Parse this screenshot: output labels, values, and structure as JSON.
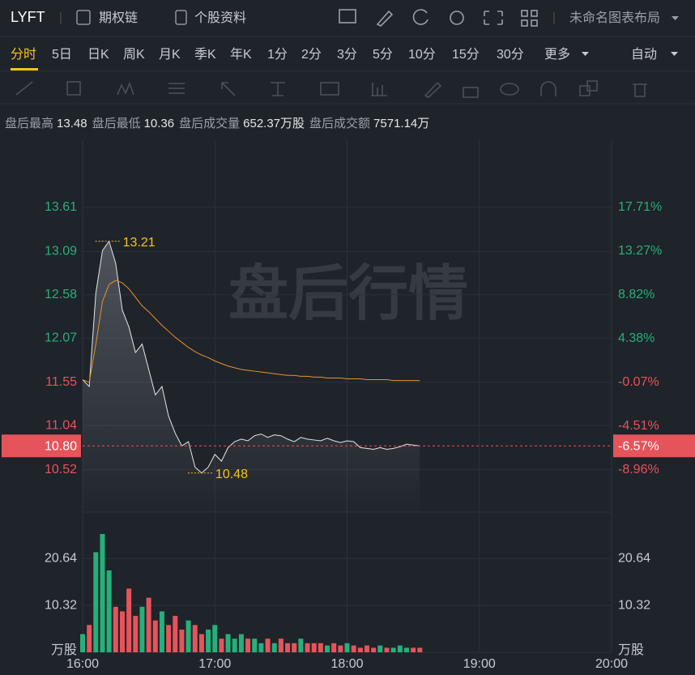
{
  "header": {
    "symbol": "LYFT",
    "links": [
      "期权链",
      "个股资料"
    ],
    "layout_name": "未命名图表布局"
  },
  "periods": {
    "items": [
      "分时",
      "5日",
      "日K",
      "周K",
      "月K",
      "季K",
      "年K",
      "1分",
      "2分",
      "3分",
      "5分",
      "10分",
      "15分",
      "30分",
      "更多"
    ],
    "active": 0,
    "mode": "自动"
  },
  "stats": [
    {
      "label": "盘后最高",
      "value": "13.48"
    },
    {
      "label": "盘后最低",
      "value": "10.36"
    },
    {
      "label": "盘后成交量",
      "value": "652.37万股"
    },
    {
      "label": "盘后成交额",
      "value": "7571.14万"
    }
  ],
  "chart_data": {
    "type": "line",
    "watermark": "盘后行情",
    "x": [
      "16:00",
      "16:03",
      "16:06",
      "16:09",
      "16:12",
      "16:15",
      "16:18",
      "16:21",
      "16:24",
      "16:27",
      "16:30",
      "16:33",
      "16:36",
      "16:39",
      "16:42",
      "16:45",
      "16:48",
      "16:51",
      "16:54",
      "16:57",
      "17:00",
      "17:03",
      "17:06",
      "17:09",
      "17:12",
      "17:15",
      "17:18",
      "17:21",
      "17:24",
      "17:27",
      "17:30",
      "17:33",
      "17:36",
      "17:39",
      "17:42",
      "17:45",
      "17:48",
      "17:51",
      "17:54",
      "17:57",
      "18:00",
      "18:03",
      "18:06",
      "18:09",
      "18:12",
      "18:15",
      "18:18",
      "18:21",
      "18:24",
      "18:27",
      "18:30",
      "18:33"
    ],
    "xlim": [
      "16:00",
      "20:00"
    ],
    "xticks": [
      "16:00",
      "17:00",
      "18:00",
      "19:00",
      "20:00"
    ],
    "series": [
      {
        "color": "#e6e6e6",
        "values": [
          11.58,
          11.5,
          12.6,
          13.1,
          13.21,
          12.95,
          12.4,
          12.2,
          11.9,
          12.0,
          11.7,
          11.4,
          11.5,
          11.15,
          10.95,
          10.8,
          10.85,
          10.55,
          10.48,
          10.55,
          10.7,
          10.62,
          10.78,
          10.85,
          10.88,
          10.86,
          10.92,
          10.94,
          10.9,
          10.93,
          10.92,
          10.88,
          10.85,
          10.9,
          10.88,
          10.87,
          10.86,
          10.89,
          10.86,
          10.84,
          10.86,
          10.85,
          10.78,
          10.77,
          10.76,
          10.78,
          10.76,
          10.77,
          10.79,
          10.82,
          10.81,
          10.8
        ]
      },
      {
        "color": "#e8922c",
        "values": [
          11.58,
          11.55,
          12.0,
          12.5,
          12.7,
          12.75,
          12.72,
          12.65,
          12.55,
          12.45,
          12.38,
          12.3,
          12.22,
          12.15,
          12.08,
          12.02,
          11.96,
          11.91,
          11.87,
          11.84,
          11.8,
          11.77,
          11.74,
          11.72,
          11.7,
          11.69,
          11.68,
          11.67,
          11.66,
          11.65,
          11.64,
          11.63,
          11.63,
          11.62,
          11.62,
          11.61,
          11.61,
          11.6,
          11.6,
          11.6,
          11.59,
          11.59,
          11.59,
          11.58,
          11.58,
          11.58,
          11.58,
          11.57,
          11.57,
          11.57,
          11.57,
          11.57
        ]
      }
    ],
    "ylim": [
      10.02,
      14.41
    ],
    "yticks": [
      13.61,
      13.09,
      12.58,
      12.07,
      11.55,
      11.04,
      10.52
    ],
    "y2lim": [
      -13.24,
      24.62
    ],
    "y2ticks": [
      {
        "value": 17.71,
        "label": "17.71%"
      },
      {
        "value": 13.27,
        "label": "13.27%"
      },
      {
        "value": 8.82,
        "label": "8.82%"
      },
      {
        "value": 4.38,
        "label": "4.38%"
      },
      {
        "value": -0.07,
        "label": "-0.07%"
      },
      {
        "value": -4.51,
        "label": "-4.51%"
      },
      {
        "value": -8.96,
        "label": "-8.96%"
      }
    ],
    "last_price": {
      "value": 10.8,
      "label": "10.80"
    },
    "last_change": {
      "value": -6.57,
      "label": "-6.57%"
    },
    "high_marker": {
      "x": "16:12",
      "value": 13.21
    },
    "low_marker": {
      "x": "16:54",
      "value": 10.48
    },
    "up_color": "#26b07a",
    "down_color": "#e5545a",
    "grid": true,
    "volume": {
      "values": [
        4,
        6,
        22,
        26,
        18,
        10,
        9,
        14,
        8,
        10,
        12,
        7,
        9,
        6,
        8,
        5,
        7,
        6,
        4,
        5,
        6,
        3,
        4,
        3,
        4,
        3,
        3,
        2,
        3,
        2,
        3,
        2,
        2,
        3,
        2,
        2,
        2,
        1.5,
        2,
        1.5,
        2,
        1.5,
        1,
        1.5,
        1,
        1.5,
        1,
        1,
        1.5,
        1,
        1,
        1
      ],
      "ylim": [
        0,
        30.8
      ],
      "yticks": [
        {
          "value": 0,
          "label": "万股"
        },
        10.32,
        20.64
      ]
    }
  }
}
